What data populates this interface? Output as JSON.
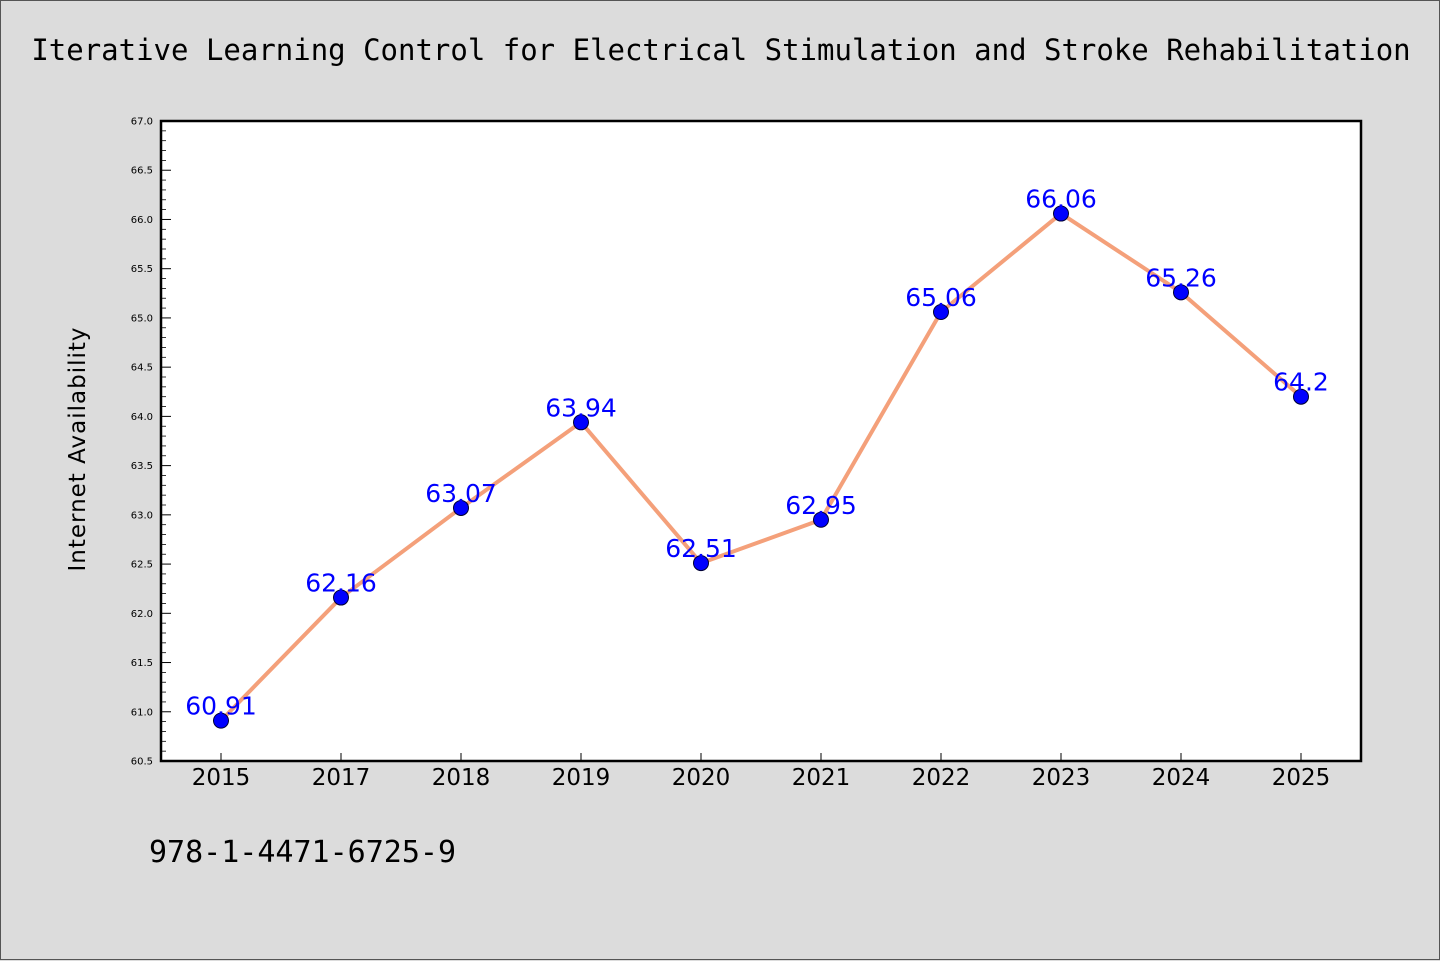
{
  "header": {
    "title": "Iterative Learning Control for Electrical Stimulation and Stroke Rehabilitation"
  },
  "footer": {
    "isbn": "978-1-4471-6725-9"
  },
  "chart_data": {
    "type": "line",
    "title": "Iterative Learning Control for Electrical Stimulation and Stroke Rehabilitation",
    "xlabel": "",
    "ylabel": "Internet Availability",
    "categories": [
      "2015",
      "2017",
      "2018",
      "2019",
      "2020",
      "2021",
      "2022",
      "2023",
      "2024",
      "2025"
    ],
    "series": [
      {
        "values": [
          60.91,
          62.16,
          63.07,
          63.94,
          62.51,
          62.95,
          65.06,
          66.06,
          65.26,
          64.2
        ],
        "labels": [
          "60.91",
          "62.16",
          "63.07",
          "63.94",
          "62.51",
          "62.95",
          "65.06",
          "66.06",
          "65.26",
          "64.2"
        ]
      }
    ],
    "ylim": [
      60.5,
      67.0
    ],
    "yticks": [
      "60.5",
      "61.0",
      "61.5",
      "62.0",
      "62.5",
      "63.0",
      "63.5",
      "64.0",
      "64.5",
      "65.0",
      "65.5",
      "66.0",
      "66.5",
      "67.0"
    ],
    "grid": false,
    "legend": "none",
    "colors": {
      "line": "#f4a07a",
      "marker": "#0000ff",
      "data_label": "#0000ff",
      "plot_background": "#ffffff",
      "figure_background": "#dcdcdc"
    }
  }
}
